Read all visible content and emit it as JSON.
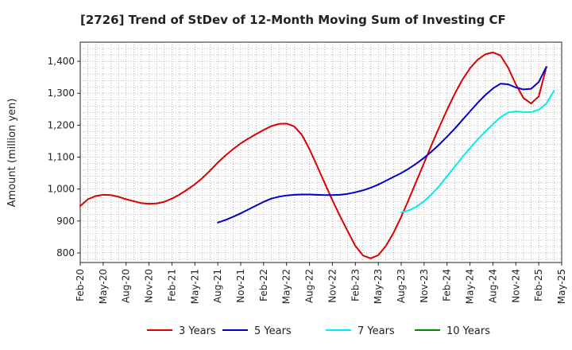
{
  "chart_data": {
    "type": "line",
    "title": "[2726]  Trend of StDev of 12-Month Moving Sum of Investing CF",
    "xlabel": "",
    "ylabel": "Amount (million yen)",
    "ylim": [
      770,
      1460
    ],
    "yticks": [
      800,
      900,
      1000,
      1100,
      1200,
      1300,
      1400
    ],
    "ytick_labels": [
      "800",
      "900",
      "1,000",
      "1,100",
      "1,200",
      "1,300",
      "1,400"
    ],
    "x_categories": [
      "Feb-20",
      "May-20",
      "Aug-20",
      "Nov-20",
      "Feb-21",
      "May-21",
      "Aug-21",
      "Nov-21",
      "Feb-22",
      "May-22",
      "Aug-22",
      "Nov-22",
      "Feb-23",
      "May-23",
      "Aug-23",
      "Nov-23",
      "Feb-24",
      "May-24",
      "Aug-24",
      "Nov-24",
      "Feb-25",
      "May-25"
    ],
    "grid": true,
    "legend_position": "bottom",
    "series": [
      {
        "name": "3 Years",
        "color": "#dd0000",
        "points": [
          [
            "Feb-20",
            947
          ],
          [
            "Mar-20",
            968
          ],
          [
            "Apr-20",
            978
          ],
          [
            "May-20",
            982
          ],
          [
            "Jun-20",
            981
          ],
          [
            "Jul-20",
            976
          ],
          [
            "Aug-20",
            968
          ],
          [
            "Sep-20",
            962
          ],
          [
            "Oct-20",
            956
          ],
          [
            "Nov-20",
            954
          ],
          [
            "Dec-20",
            955
          ],
          [
            "Jan-21",
            960
          ],
          [
            "Feb-21",
            970
          ],
          [
            "Mar-21",
            983
          ],
          [
            "Apr-21",
            998
          ],
          [
            "May-21",
            1015
          ],
          [
            "Jun-21",
            1035
          ],
          [
            "Jul-21",
            1058
          ],
          [
            "Aug-21",
            1083
          ],
          [
            "Sep-21",
            1105
          ],
          [
            "Oct-21",
            1125
          ],
          [
            "Nov-21",
            1143
          ],
          [
            "Dec-21",
            1158
          ],
          [
            "Jan-22",
            1172
          ],
          [
            "Feb-22",
            1185
          ],
          [
            "Mar-22",
            1197
          ],
          [
            "Apr-22",
            1204
          ],
          [
            "May-22",
            1205
          ],
          [
            "Jun-22",
            1196
          ],
          [
            "Jul-22",
            1170
          ],
          [
            "Aug-22",
            1125
          ],
          [
            "Sep-22",
            1072
          ],
          [
            "Oct-22",
            1018
          ],
          [
            "Nov-22",
            965
          ],
          [
            "Dec-22",
            915
          ],
          [
            "Jan-23",
            868
          ],
          [
            "Feb-23",
            822
          ],
          [
            "Mar-23",
            792
          ],
          [
            "Apr-23",
            783
          ],
          [
            "May-23",
            793
          ],
          [
            "Jun-23",
            822
          ],
          [
            "Jul-23",
            863
          ],
          [
            "Aug-23",
            913
          ],
          [
            "Sep-23",
            968
          ],
          [
            "Oct-23",
            1025
          ],
          [
            "Nov-23",
            1082
          ],
          [
            "Dec-23",
            1140
          ],
          [
            "Jan-24",
            1195
          ],
          [
            "Feb-24",
            1248
          ],
          [
            "Mar-24",
            1298
          ],
          [
            "Apr-24",
            1342
          ],
          [
            "May-24",
            1378
          ],
          [
            "Jun-24",
            1405
          ],
          [
            "Jul-24",
            1422
          ],
          [
            "Aug-24",
            1428
          ],
          [
            "Sep-24",
            1418
          ],
          [
            "Oct-24",
            1380
          ],
          [
            "Nov-24",
            1328
          ],
          [
            "Dec-24",
            1285
          ],
          [
            "Jan-25",
            1268
          ],
          [
            "Feb-25",
            1290
          ],
          [
            "Mar-25",
            1382
          ]
        ]
      },
      {
        "name": "5 Years",
        "color": "#0000cc",
        "points": [
          [
            "Aug-21",
            895
          ],
          [
            "Sep-21",
            903
          ],
          [
            "Oct-21",
            913
          ],
          [
            "Nov-21",
            924
          ],
          [
            "Dec-21",
            936
          ],
          [
            "Jan-22",
            948
          ],
          [
            "Feb-22",
            960
          ],
          [
            "Mar-22",
            970
          ],
          [
            "Apr-22",
            976
          ],
          [
            "May-22",
            980
          ],
          [
            "Jun-22",
            982
          ],
          [
            "Jul-22",
            983
          ],
          [
            "Aug-22",
            983
          ],
          [
            "Sep-22",
            982
          ],
          [
            "Oct-22",
            981
          ],
          [
            "Nov-22",
            981
          ],
          [
            "Dec-22",
            982
          ],
          [
            "Jan-23",
            985
          ],
          [
            "Feb-23",
            990
          ],
          [
            "Mar-23",
            996
          ],
          [
            "Apr-23",
            1004
          ],
          [
            "May-23",
            1014
          ],
          [
            "Jun-23",
            1026
          ],
          [
            "Jul-23",
            1038
          ],
          [
            "Aug-23",
            1050
          ],
          [
            "Sep-23",
            1064
          ],
          [
            "Oct-23",
            1080
          ],
          [
            "Nov-23",
            1098
          ],
          [
            "Dec-23",
            1118
          ],
          [
            "Jan-24",
            1140
          ],
          [
            "Feb-24",
            1164
          ],
          [
            "Mar-24",
            1189
          ],
          [
            "Apr-24",
            1216
          ],
          [
            "May-24",
            1243
          ],
          [
            "Jun-24",
            1270
          ],
          [
            "Jul-24",
            1294
          ],
          [
            "Aug-24",
            1315
          ],
          [
            "Sep-24",
            1330
          ],
          [
            "Oct-24",
            1328
          ],
          [
            "Nov-24",
            1318
          ],
          [
            "Dec-24",
            1312
          ],
          [
            "Jan-25",
            1314
          ],
          [
            "Feb-25",
            1335
          ],
          [
            "Mar-25",
            1383
          ]
        ]
      },
      {
        "name": "7 Years",
        "color": "#00eeee",
        "points": [
          [
            "Aug-23",
            927
          ],
          [
            "Sep-23",
            933
          ],
          [
            "Oct-23",
            945
          ],
          [
            "Nov-23",
            962
          ],
          [
            "Dec-23",
            984
          ],
          [
            "Jan-24",
            1010
          ],
          [
            "Feb-24",
            1040
          ],
          [
            "Mar-24",
            1070
          ],
          [
            "Apr-24",
            1100
          ],
          [
            "May-24",
            1128
          ],
          [
            "Jun-24",
            1155
          ],
          [
            "Jul-24",
            1180
          ],
          [
            "Aug-24",
            1203
          ],
          [
            "Sep-24",
            1225
          ],
          [
            "Oct-24",
            1240
          ],
          [
            "Nov-24",
            1243
          ],
          [
            "Dec-24",
            1241
          ],
          [
            "Jan-25",
            1241
          ],
          [
            "Feb-25",
            1248
          ],
          [
            "Mar-25",
            1268
          ],
          [
            "Apr-25",
            1308
          ]
        ]
      },
      {
        "name": "10 Years",
        "color": "#008800",
        "points": []
      }
    ]
  }
}
